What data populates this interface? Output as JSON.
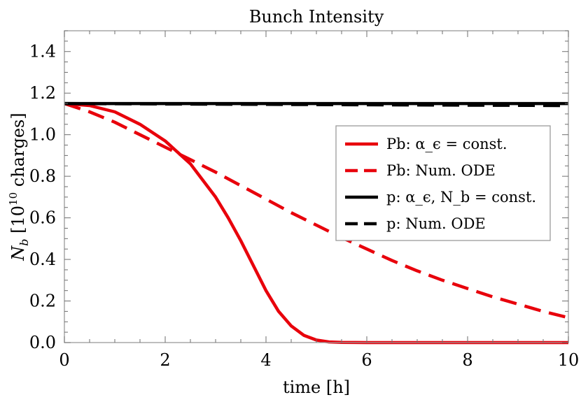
{
  "chart_data": {
    "type": "line",
    "title": "Bunch Intensity",
    "xlabel": "time [h]",
    "ylabel": "N_b [10^10 charges]",
    "xlim": [
      0,
      10
    ],
    "ylim": [
      0,
      1.5
    ],
    "x_ticks": [
      "0",
      "2",
      "4",
      "6",
      "8",
      "10"
    ],
    "y_ticks": [
      "0.0",
      "0.2",
      "0.4",
      "0.6",
      "0.8",
      "1.0",
      "1.2",
      "1.4"
    ],
    "grid": false,
    "legend_position": "center-right",
    "series": [
      {
        "name": "Pb: α_ϵ = const.",
        "color": "#e8000b",
        "dash": "solid",
        "x": [
          0,
          0.5,
          1,
          1.5,
          2,
          2.5,
          3,
          3.25,
          3.5,
          3.75,
          4,
          4.25,
          4.5,
          4.75,
          5,
          5.25,
          5.5,
          6,
          7,
          8,
          9,
          10
        ],
        "y": [
          1.15,
          1.14,
          1.11,
          1.05,
          0.97,
          0.86,
          0.7,
          0.6,
          0.49,
          0.37,
          0.25,
          0.15,
          0.08,
          0.035,
          0.012,
          0.003,
          0.001,
          0,
          0,
          0,
          0,
          0
        ]
      },
      {
        "name": "Pb: Num. ODE",
        "color": "#e8000b",
        "dash": "dashed",
        "x": [
          0,
          0.5,
          1,
          1.5,
          2,
          2.5,
          3,
          3.5,
          4,
          4.5,
          5,
          5.5,
          6,
          6.5,
          7,
          7.5,
          8,
          8.5,
          9,
          9.5,
          10
        ],
        "y": [
          1.15,
          1.11,
          1.06,
          1.0,
          0.94,
          0.88,
          0.82,
          0.755,
          0.69,
          0.625,
          0.565,
          0.505,
          0.45,
          0.395,
          0.345,
          0.3,
          0.26,
          0.22,
          0.185,
          0.15,
          0.12
        ]
      },
      {
        "name": "p: α_ϵ, N_b = const.",
        "color": "#000000",
        "dash": "solid",
        "x": [
          0,
          10
        ],
        "y": [
          1.15,
          1.15
        ]
      },
      {
        "name": "p: Num. ODE",
        "color": "#000000",
        "dash": "dashed",
        "x": [
          0,
          5,
          10
        ],
        "y": [
          1.15,
          1.145,
          1.14
        ]
      }
    ]
  }
}
